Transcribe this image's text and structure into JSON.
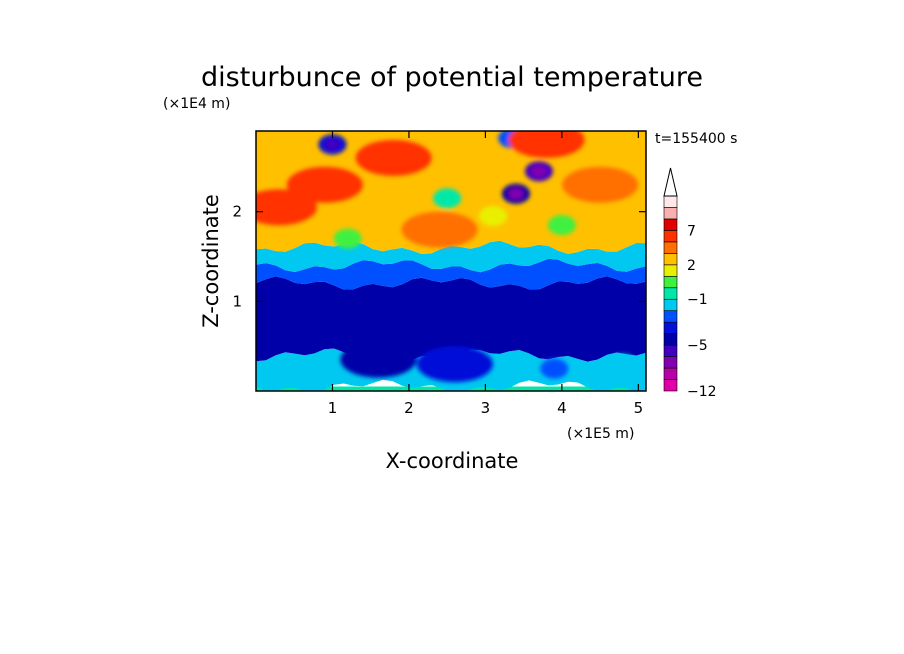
{
  "chart_data": {
    "type": "heatmap",
    "title": "disturbunce of potential temperature",
    "xlabel": "X-coordinate",
    "ylabel": "Z-coordinate",
    "x_unit": "(×1E5 m)",
    "y_unit": "(×1E4 m)",
    "time_label": "t=155400 s",
    "xlim": [
      0,
      5.1
    ],
    "ylim": [
      0,
      2.9
    ],
    "x_ticks": [
      "1",
      "2",
      "3",
      "4",
      "5"
    ],
    "y_ticks": [
      "1",
      "2"
    ],
    "colorbar": {
      "levels": [
        -12,
        -10,
        -8,
        -6,
        -5,
        -4,
        -3,
        -2,
        -1,
        0,
        1,
        2,
        3,
        5,
        7,
        9,
        12
      ],
      "tick_labels": [
        "7",
        "2",
        "−1",
        "−5",
        "−12"
      ],
      "colors": [
        "#e000a8",
        "#b800a8",
        "#8000b0",
        "#4000c0",
        "#0000a8",
        "#0010d8",
        "#0050ff",
        "#00c8f0",
        "#00e8a8",
        "#40f040",
        "#e8f000",
        "#ffc000",
        "#ff7000",
        "#ff3000",
        "#e00000",
        "#f8b0b0",
        "#ffe8e8"
      ],
      "extend": "max"
    },
    "layers": [
      {
        "z_range": [
          0,
          0.05
        ],
        "level": -1
      },
      {
        "z_range": [
          0.05,
          0.4
        ],
        "level": -2
      },
      {
        "z_range": [
          0.4,
          1.2
        ],
        "level": -5
      },
      {
        "z_range": [
          1.2,
          1.4
        ],
        "level": -3
      },
      {
        "z_range": [
          1.4,
          1.6
        ],
        "level": -2
      },
      {
        "z_range": [
          1.6,
          2.9
        ],
        "level": 2
      }
    ],
    "features": [
      {
        "x": 1.0,
        "z": 2.75,
        "level": -4
      },
      {
        "x": 3.4,
        "z": 2.2,
        "level": -5
      },
      {
        "x": 3.7,
        "z": 2.45,
        "level": -6
      },
      {
        "x": 3.35,
        "z": 2.82,
        "level": -3
      },
      {
        "x": 0.9,
        "z": 2.3,
        "level": 5
      },
      {
        "x": 1.8,
        "z": 2.6,
        "level": 5
      },
      {
        "x": 3.8,
        "z": 2.8,
        "level": 5
      },
      {
        "x": 0.3,
        "z": 2.05,
        "level": 5
      },
      {
        "x": 2.4,
        "z": 1.8,
        "level": 3
      },
      {
        "x": 3.1,
        "z": 1.95,
        "level": 1
      },
      {
        "x": 4.5,
        "z": 2.3,
        "level": 3
      },
      {
        "x": 2.5,
        "z": 2.15,
        "level": -1
      },
      {
        "x": 1.2,
        "z": 1.7,
        "level": 0
      },
      {
        "x": 4.0,
        "z": 1.85,
        "level": 0
      },
      {
        "x": 1.6,
        "z": 0.35,
        "level": -5
      },
      {
        "x": 2.6,
        "z": 0.3,
        "level": -4
      },
      {
        "x": 3.9,
        "z": 0.25,
        "level": -3
      },
      {
        "x": 4.8,
        "z": 0.3,
        "level": -2
      }
    ]
  }
}
